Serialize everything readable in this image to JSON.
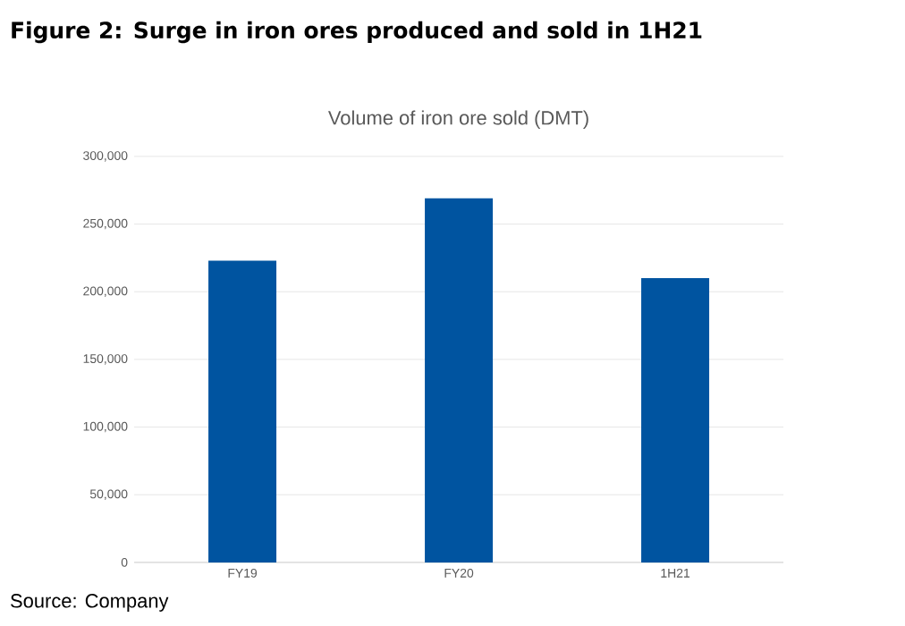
{
  "chart_data": {
    "type": "bar",
    "title": "Figure 2: Surge in iron ores produced and sold in 1H21",
    "subtitle": "Volume of iron ore sold (DMT)",
    "categories": [
      "FY19",
      "FY20",
      "1H21"
    ],
    "values": [
      223000,
      269000,
      210000
    ],
    "color": "#0054a0",
    "ylim": [
      0,
      300000
    ],
    "yticks": [
      0,
      {
        "value": 50000,
        "label": "50,000"
      },
      {
        "value": 100000,
        "label": "100,000"
      },
      {
        "value": 150000,
        "label": "150,000"
      },
      {
        "value": 200000,
        "label": "200,000"
      },
      {
        "value": 250000,
        "label": "250,000"
      },
      {
        "value": 300000,
        "label": "300,000"
      }
    ],
    "grid": "y",
    "annotations": [
      "Source: Company"
    ]
  }
}
